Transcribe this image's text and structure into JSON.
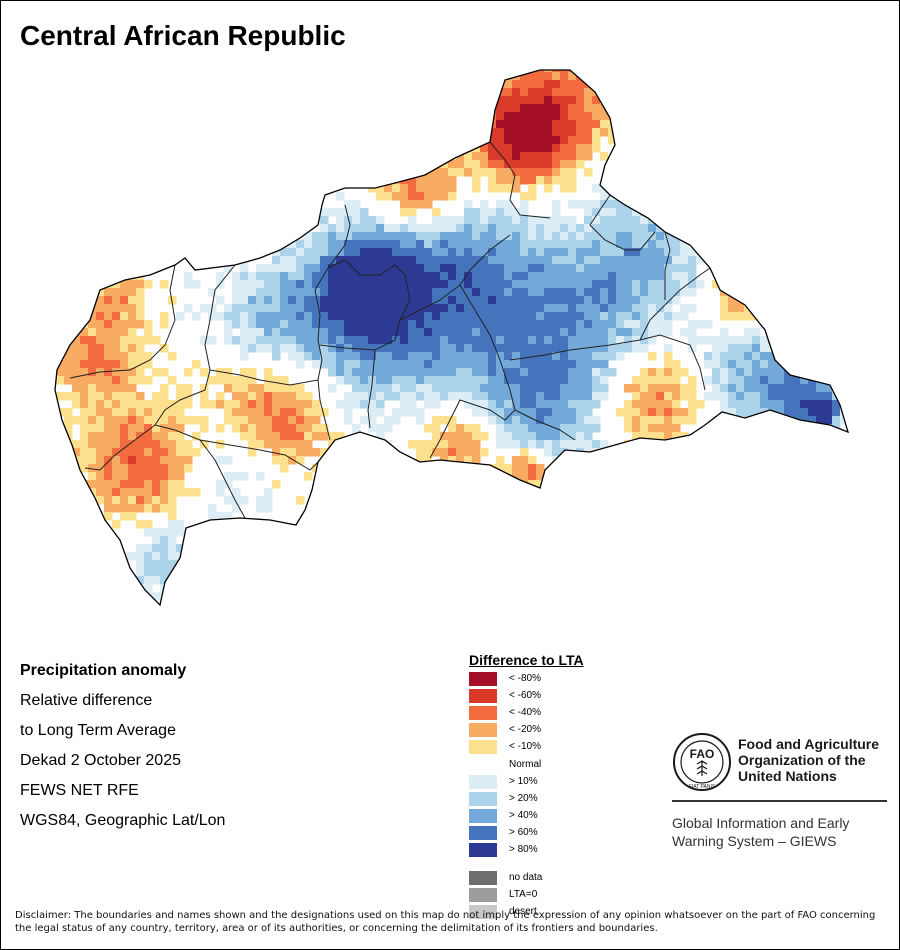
{
  "map": {
    "title": "Central African Republic"
  },
  "info": {
    "heading": "Precipitation anomaly",
    "line1": "Relative difference",
    "line2": "to Long Term Average",
    "line3": "Dekad 2 October 2025",
    "line4": "FEWS NET RFE",
    "line5": "WGS84, Geographic Lat/Lon"
  },
  "legend": {
    "title": "Difference to LTA",
    "items": [
      {
        "label": "< -80%",
        "color": "#a50f25"
      },
      {
        "label": "< -60%",
        "color": "#d93a2a"
      },
      {
        "label": "< -40%",
        "color": "#f26c3f"
      },
      {
        "label": "< -20%",
        "color": "#f8ab62"
      },
      {
        "label": "< -10%",
        "color": "#fde08e"
      },
      {
        "label": "Normal",
        "color": "#ffffff"
      },
      {
        "label": "> 10%",
        "color": "#dcedf6"
      },
      {
        "label": "> 20%",
        "color": "#abd4ea"
      },
      {
        "label": "> 40%",
        "color": "#72a9d8"
      },
      {
        "label": "> 60%",
        "color": "#4574bd"
      },
      {
        "label": "> 80%",
        "color": "#2c3a94"
      },
      {
        "label": "no data",
        "color": "#6e6e6e"
      },
      {
        "label": "LTA=0",
        "color": "#9c9c9c"
      },
      {
        "label": "desert",
        "color": "#c8c8c8"
      }
    ]
  },
  "logo": {
    "emblem_text": "FAO",
    "motto": "FIAT PANIS",
    "org_line1": "Food and Agriculture",
    "org_line2": "Organization of the",
    "org_line3": "United Nations",
    "system_line1": "Global Information and Early",
    "system_line2": "Warning System – GIEWS"
  },
  "disclaimer": "Disclaimer: The boundaries and names shown and the designations used on this map do not imply the expression of any opinion whatsoever on the part of FAO concerning the legal status of any country, territory, area or of its authorities, or concerning the delimitation of its frontiers and boundaries.",
  "colors": {
    "outline": "#000000",
    "admin_lines": "#222222"
  }
}
